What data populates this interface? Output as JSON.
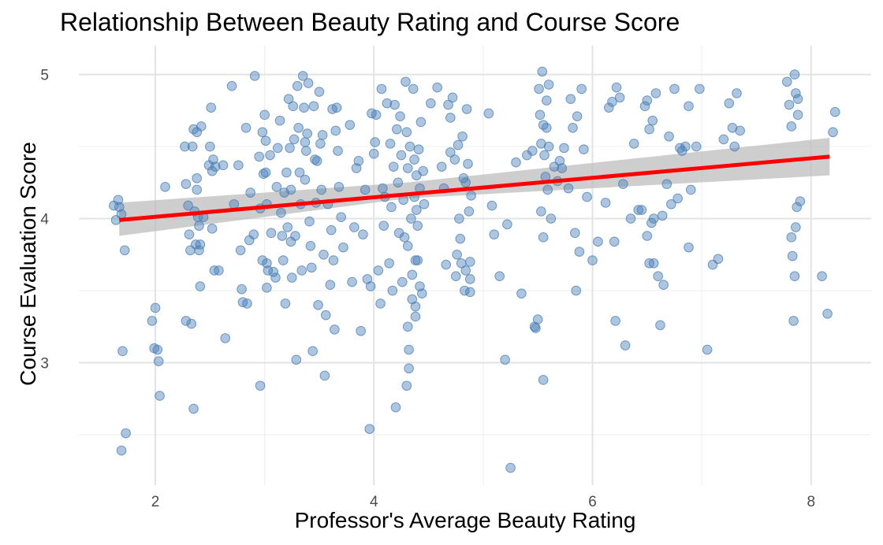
{
  "chart_data": {
    "type": "scatter",
    "title": "Relationship Between Beauty Rating and Course Score",
    "xlabel": "Professor's Average Beauty Rating",
    "ylabel": "Course Evaluation Score",
    "xlim": [
      1.3,
      8.55
    ],
    "ylim": [
      2.15,
      5.2
    ],
    "x_ticks": [
      2,
      4,
      6,
      8
    ],
    "y_ticks": [
      3,
      4,
      5
    ],
    "grid": true,
    "point_color": "#4a7fb5",
    "fit_color": "#ff0000",
    "band_color": "#bebebe",
    "fit_line": {
      "x": [
        1.67,
        8.17
      ],
      "y": [
        3.99,
        4.43
      ]
    },
    "confidence_band": {
      "x": [
        1.67,
        4.3,
        8.17
      ],
      "lower": [
        3.88,
        4.14,
        4.3
      ],
      "upper": [
        4.11,
        4.25,
        4.56
      ]
    },
    "points": [
      [
        1.62,
        4.09
      ],
      [
        1.66,
        4.13
      ],
      [
        1.64,
        3.99
      ],
      [
        1.67,
        4.08
      ],
      [
        1.69,
        4.03
      ],
      [
        1.72,
        3.78
      ],
      [
        1.7,
        3.08
      ],
      [
        1.73,
        2.51
      ],
      [
        1.69,
        2.39
      ],
      [
        1.97,
        3.29
      ],
      [
        2.0,
        3.38
      ],
      [
        1.99,
        3.1
      ],
      [
        2.02,
        3.09
      ],
      [
        2.03,
        3.01
      ],
      [
        2.04,
        2.77
      ],
      [
        2.09,
        4.22
      ],
      [
        2.27,
        4.5
      ],
      [
        2.28,
        4.24
      ],
      [
        2.28,
        3.29
      ],
      [
        2.3,
        4.09
      ],
      [
        2.31,
        3.89
      ],
      [
        2.32,
        3.78
      ],
      [
        2.33,
        3.27
      ],
      [
        2.34,
        4.5
      ],
      [
        2.35,
        4.62
      ],
      [
        2.36,
        4.05
      ],
      [
        2.35,
        2.68
      ],
      [
        2.38,
        4.6
      ],
      [
        2.38,
        4.28
      ],
      [
        2.38,
        4.2
      ],
      [
        2.39,
        4.01
      ],
      [
        2.4,
        3.95
      ],
      [
        2.41,
        3.82
      ],
      [
        2.4,
        3.78
      ],
      [
        2.41,
        3.53
      ],
      [
        2.42,
        4.64
      ],
      [
        2.37,
        3.82
      ],
      [
        2.44,
        4.01
      ],
      [
        2.49,
        4.37
      ],
      [
        2.5,
        4.5
      ],
      [
        2.51,
        4.77
      ],
      [
        2.52,
        4.33
      ],
      [
        2.53,
        4.41
      ],
      [
        2.55,
        4.36
      ],
      [
        2.52,
        3.93
      ],
      [
        2.54,
        3.64
      ],
      [
        2.58,
        3.64
      ],
      [
        2.62,
        4.37
      ],
      [
        2.64,
        3.17
      ],
      [
        2.7,
        4.92
      ],
      [
        2.72,
        4.1
      ],
      [
        2.76,
        4.37
      ],
      [
        2.78,
        3.78
      ],
      [
        2.79,
        3.51
      ],
      [
        2.8,
        3.42
      ],
      [
        2.83,
        4.63
      ],
      [
        2.84,
        3.41
      ],
      [
        2.86,
        3.85
      ],
      [
        2.87,
        4.18
      ],
      [
        2.9,
        3.89
      ],
      [
        2.91,
        4.99
      ],
      [
        2.95,
        4.43
      ],
      [
        2.96,
        4.07
      ],
      [
        2.98,
        4.6
      ],
      [
        2.98,
        3.71
      ],
      [
        2.99,
        4.31
      ],
      [
        3.0,
        4.72
      ],
      [
        3.01,
        4.54
      ],
      [
        3.01,
        4.32
      ],
      [
        3.02,
        4.1
      ],
      [
        3.02,
        3.69
      ],
      [
        3.02,
        3.52
      ],
      [
        3.03,
        3.64
      ],
      [
        2.96,
        2.84
      ],
      [
        3.05,
        4.44
      ],
      [
        3.06,
        3.9
      ],
      [
        3.08,
        3.63
      ],
      [
        3.1,
        3.59
      ],
      [
        3.11,
        4.22
      ],
      [
        3.12,
        4.49
      ],
      [
        3.14,
        4.68
      ],
      [
        3.15,
        4.04
      ],
      [
        3.16,
        3.88
      ],
      [
        3.17,
        3.71
      ],
      [
        3.18,
        4.18
      ],
      [
        3.19,
        3.41
      ],
      [
        3.2,
        4.32
      ],
      [
        3.21,
        3.94
      ],
      [
        3.22,
        4.83
      ],
      [
        3.23,
        4.49
      ],
      [
        3.24,
        4.2
      ],
      [
        3.24,
        3.84
      ],
      [
        3.25,
        3.59
      ],
      [
        3.26,
        4.78
      ],
      [
        3.27,
        4.55
      ],
      [
        3.28,
        3.88
      ],
      [
        3.29,
        3.02
      ],
      [
        3.3,
        4.92
      ],
      [
        3.31,
        4.63
      ],
      [
        3.32,
        4.32
      ],
      [
        3.33,
        4.1
      ],
      [
        3.34,
        3.64
      ],
      [
        3.35,
        4.99
      ],
      [
        3.36,
        4.77
      ],
      [
        3.37,
        4.53
      ],
      [
        3.37,
        4.27
      ],
      [
        3.38,
        4.47
      ],
      [
        3.39,
        4.59
      ],
      [
        3.4,
        4.94
      ],
      [
        3.41,
        3.98
      ],
      [
        3.42,
        3.81
      ],
      [
        3.43,
        3.66
      ],
      [
        3.44,
        3.08
      ],
      [
        3.45,
        4.78
      ],
      [
        3.46,
        4.41
      ],
      [
        3.47,
        4.11
      ],
      [
        3.48,
        4.4
      ],
      [
        3.49,
        3.4
      ],
      [
        3.5,
        4.88
      ],
      [
        3.51,
        4.52
      ],
      [
        3.52,
        4.2
      ],
      [
        3.53,
        4.58
      ],
      [
        3.54,
        3.75
      ],
      [
        3.55,
        2.91
      ],
      [
        3.56,
        3.33
      ],
      [
        3.58,
        4.1
      ],
      [
        3.6,
        3.54
      ],
      [
        3.61,
        3.92
      ],
      [
        3.62,
        4.76
      ],
      [
        3.63,
        3.71
      ],
      [
        3.64,
        3.23
      ],
      [
        3.65,
        4.61
      ],
      [
        3.66,
        4.77
      ],
      [
        3.67,
        4.47
      ],
      [
        3.68,
        4.22
      ],
      [
        3.7,
        4.01
      ],
      [
        3.72,
        3.8
      ],
      [
        3.78,
        4.65
      ],
      [
        3.8,
        3.56
      ],
      [
        3.82,
        3.94
      ],
      [
        3.84,
        4.35
      ],
      [
        3.86,
        4.4
      ],
      [
        3.88,
        3.22
      ],
      [
        3.9,
        3.89
      ],
      [
        3.92,
        4.2
      ],
      [
        3.94,
        3.58
      ],
      [
        3.96,
        2.54
      ],
      [
        3.97,
        3.53
      ],
      [
        3.98,
        4.73
      ],
      [
        4.0,
        4.45
      ],
      [
        4.01,
        4.53
      ],
      [
        4.02,
        4.72
      ],
      [
        4.04,
        3.64
      ],
      [
        4.06,
        3.41
      ],
      [
        4.07,
        4.9
      ],
      [
        4.08,
        4.21
      ],
      [
        4.09,
        3.95
      ],
      [
        4.1,
        4.15
      ],
      [
        4.12,
        4.8
      ],
      [
        4.14,
        3.69
      ],
      [
        4.15,
        4.52
      ],
      [
        4.16,
        4.08
      ],
      [
        4.17,
        3.5
      ],
      [
        4.18,
        4.36
      ],
      [
        4.19,
        4.79
      ],
      [
        4.2,
        2.69
      ],
      [
        4.21,
        4.62
      ],
      [
        4.22,
        4.25
      ],
      [
        4.23,
        3.9
      ],
      [
        4.24,
        4.71
      ],
      [
        4.25,
        4.44
      ],
      [
        4.26,
        3.56
      ],
      [
        4.27,
        4.13
      ],
      [
        4.28,
        3.87
      ],
      [
        4.29,
        4.95
      ],
      [
        4.3,
        4.6
      ],
      [
        4.31,
        4.35
      ],
      [
        4.31,
        3.81
      ],
      [
        4.32,
        2.96
      ],
      [
        4.32,
        3.09
      ],
      [
        4.33,
        4.5
      ],
      [
        4.34,
        4.0
      ],
      [
        4.35,
        3.61
      ],
      [
        4.35,
        3.44
      ],
      [
        4.36,
        4.9
      ],
      [
        4.37,
        4.41
      ],
      [
        4.37,
        4.15
      ],
      [
        4.38,
        3.71
      ],
      [
        4.38,
        3.39
      ],
      [
        4.39,
        4.3
      ],
      [
        4.39,
        4.06
      ],
      [
        4.4,
        3.95
      ],
      [
        4.4,
        3.71
      ],
      [
        4.41,
        4.48
      ],
      [
        4.42,
        4.21
      ],
      [
        4.43,
        4.67
      ],
      [
        4.44,
        3.48
      ],
      [
        4.3,
        2.84
      ],
      [
        4.31,
        3.25
      ],
      [
        4.38,
        3.32
      ],
      [
        4.42,
        3.53
      ],
      [
        4.45,
        4.33
      ],
      [
        4.46,
        4.1
      ],
      [
        4.52,
        4.8
      ],
      [
        4.58,
        4.91
      ],
      [
        4.62,
        4.36
      ],
      [
        4.64,
        4.21
      ],
      [
        4.66,
        3.68
      ],
      [
        4.68,
        4.79
      ],
      [
        4.7,
        4.7
      ],
      [
        4.72,
        4.84
      ],
      [
        4.74,
        4.41
      ],
      [
        4.75,
        3.6
      ],
      [
        4.76,
        3.75
      ],
      [
        4.77,
        4.51
      ],
      [
        4.78,
        4.0
      ],
      [
        4.79,
        3.86
      ],
      [
        4.8,
        3.69
      ],
      [
        4.81,
        4.57
      ],
      [
        4.82,
        4.28
      ],
      [
        4.83,
        3.5
      ],
      [
        4.84,
        3.64
      ],
      [
        4.85,
        4.76
      ],
      [
        4.86,
        4.38
      ],
      [
        4.87,
        4.05
      ],
      [
        4.88,
        3.7
      ],
      [
        4.88,
        3.49
      ],
      [
        4.89,
        4.16
      ],
      [
        4.7,
        4.46
      ],
      [
        4.84,
        4.25
      ],
      [
        4.88,
        3.58
      ],
      [
        5.05,
        4.73
      ],
      [
        5.08,
        4.09
      ],
      [
        5.1,
        3.89
      ],
      [
        5.15,
        3.6
      ],
      [
        5.2,
        3.02
      ],
      [
        5.22,
        3.96
      ],
      [
        5.25,
        2.27
      ],
      [
        5.3,
        4.39
      ],
      [
        5.35,
        3.48
      ],
      [
        5.4,
        4.44
      ],
      [
        5.45,
        4.47
      ],
      [
        5.47,
        3.25
      ],
      [
        5.48,
        3.24
      ],
      [
        5.5,
        3.3
      ],
      [
        5.51,
        4.9
      ],
      [
        5.52,
        4.72
      ],
      [
        5.53,
        4.52
      ],
      [
        5.53,
        4.05
      ],
      [
        5.54,
        5.02
      ],
      [
        5.55,
        4.65
      ],
      [
        5.55,
        3.87
      ],
      [
        5.56,
        4.44
      ],
      [
        5.57,
        4.29
      ],
      [
        5.58,
        4.82
      ],
      [
        5.58,
        4.63
      ],
      [
        5.59,
        4.2
      ],
      [
        5.6,
        4.5
      ],
      [
        5.55,
        2.88
      ],
      [
        5.6,
        4.93
      ],
      [
        5.62,
        4.0
      ],
      [
        5.65,
        4.36
      ],
      [
        5.68,
        4.26
      ],
      [
        5.7,
        4.4
      ],
      [
        5.72,
        4.35
      ],
      [
        5.74,
        4.49
      ],
      [
        5.78,
        4.21
      ],
      [
        5.8,
        4.83
      ],
      [
        5.82,
        4.63
      ],
      [
        5.84,
        3.9
      ],
      [
        5.85,
        3.5
      ],
      [
        5.86,
        4.71
      ],
      [
        5.88,
        3.77
      ],
      [
        5.9,
        4.9
      ],
      [
        5.92,
        4.48
      ],
      [
        5.95,
        4.15
      ],
      [
        6.0,
        3.71
      ],
      [
        6.05,
        3.84
      ],
      [
        6.12,
        4.11
      ],
      [
        6.15,
        4.77
      ],
      [
        6.18,
        4.81
      ],
      [
        6.2,
        3.84
      ],
      [
        6.21,
        3.29
      ],
      [
        6.22,
        4.91
      ],
      [
        6.25,
        4.84
      ],
      [
        6.28,
        4.24
      ],
      [
        6.3,
        3.12
      ],
      [
        6.35,
        4.0
      ],
      [
        6.38,
        4.52
      ],
      [
        6.42,
        4.06
      ],
      [
        6.45,
        4.06
      ],
      [
        6.48,
        4.78
      ],
      [
        6.5,
        4.82
      ],
      [
        6.5,
        3.88
      ],
      [
        6.52,
        3.69
      ],
      [
        6.52,
        4.62
      ],
      [
        6.54,
        3.97
      ],
      [
        6.55,
        4.68
      ],
      [
        6.56,
        4.0
      ],
      [
        6.56,
        3.69
      ],
      [
        6.58,
        4.87
      ],
      [
        6.6,
        3.6
      ],
      [
        6.62,
        3.26
      ],
      [
        6.64,
        4.02
      ],
      [
        6.65,
        3.54
      ],
      [
        6.68,
        4.24
      ],
      [
        6.7,
        4.57
      ],
      [
        6.72,
        4.1
      ],
      [
        6.75,
        4.9
      ],
      [
        6.78,
        4.14
      ],
      [
        6.8,
        4.49
      ],
      [
        6.82,
        4.47
      ],
      [
        6.85,
        4.5
      ],
      [
        6.88,
        4.78
      ],
      [
        6.88,
        3.8
      ],
      [
        6.9,
        4.2
      ],
      [
        6.95,
        4.5
      ],
      [
        6.98,
        4.9
      ],
      [
        7.05,
        3.09
      ],
      [
        7.1,
        3.68
      ],
      [
        7.15,
        3.72
      ],
      [
        7.2,
        4.55
      ],
      [
        7.25,
        4.8
      ],
      [
        7.28,
        4.63
      ],
      [
        7.3,
        4.5
      ],
      [
        7.32,
        4.87
      ],
      [
        7.35,
        4.61
      ],
      [
        7.78,
        4.95
      ],
      [
        7.8,
        4.79
      ],
      [
        7.82,
        4.64
      ],
      [
        7.82,
        3.87
      ],
      [
        7.83,
        3.74
      ],
      [
        7.84,
        3.29
      ],
      [
        7.85,
        5.0
      ],
      [
        7.86,
        4.87
      ],
      [
        7.86,
        3.94
      ],
      [
        7.87,
        4.08
      ],
      [
        7.88,
        4.83
      ],
      [
        7.88,
        4.72
      ],
      [
        7.9,
        4.12
      ],
      [
        8.1,
        3.6
      ],
      [
        8.15,
        3.34
      ],
      [
        8.2,
        4.6
      ],
      [
        8.22,
        4.74
      ],
      [
        7.85,
        3.6
      ]
    ]
  }
}
